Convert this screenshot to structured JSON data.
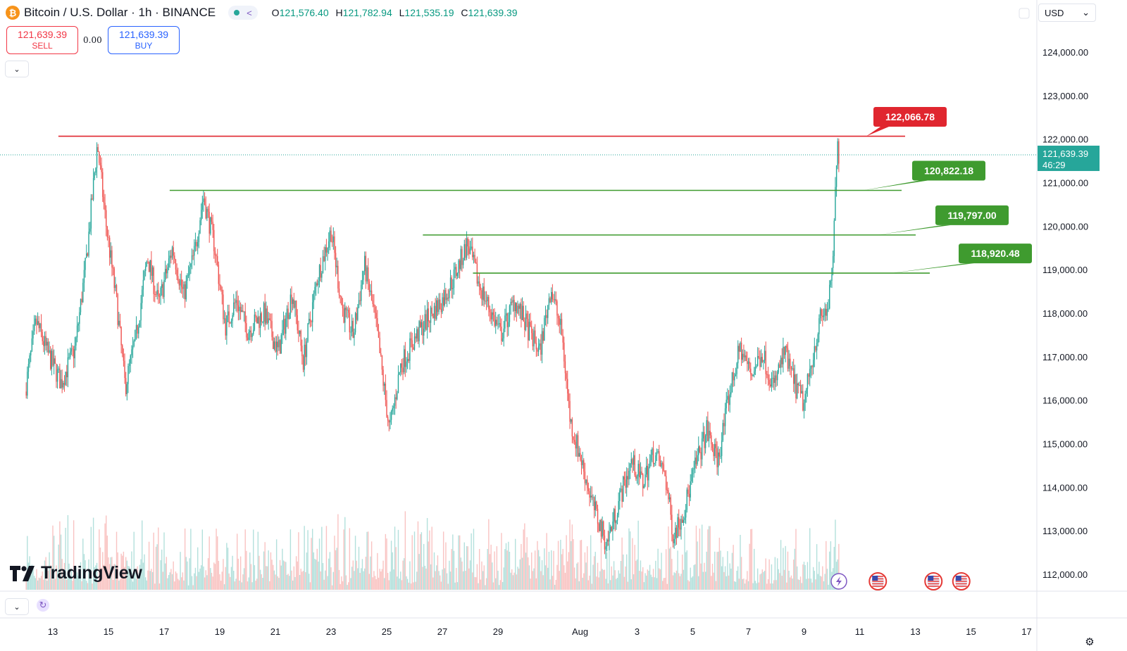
{
  "header": {
    "symbol": "Bitcoin / U.S. Dollar · 1h · BINANCE",
    "coin_glyph": "₿",
    "ohlc": {
      "o_label": "O",
      "o": "121,576.40",
      "h_label": "H",
      "h": "121,782.94",
      "l_label": "L",
      "l": "121,535.19",
      "c_label": "C",
      "c": "121,639.39"
    },
    "status_color": "#26a69a",
    "share_icon": "share-icon"
  },
  "trade": {
    "sell_price": "121,639.39",
    "sell_label": "SELL",
    "spread": "0.00",
    "buy_price": "121,639.39",
    "buy_label": "BUY"
  },
  "currency": {
    "label": "USD"
  },
  "logo": {
    "text": "TradingView"
  },
  "colors": {
    "up": "#26a69a",
    "down": "#ef5350",
    "resistance": "#e0262f",
    "support": "#3f9b2f",
    "price_tag": "#26a69a"
  },
  "chart_data": {
    "type": "candlestick",
    "symbol": "BTCUSD",
    "interval": "1h",
    "ylim": [
      111600,
      125000
    ],
    "y_ticks": [
      112000,
      113000,
      114000,
      115000,
      116000,
      117000,
      118000,
      119000,
      120000,
      121000,
      122000,
      123000,
      124000
    ],
    "y_tick_labels": [
      "112,000.00",
      "113,000.00",
      "114,000.00",
      "115,000.00",
      "116,000.00",
      "117,000.00",
      "118,000.00",
      "119,000.00",
      "120,000.00",
      "121,000.00",
      "122,000.00",
      "123,000.00",
      "124,000.00"
    ],
    "x_ticks": [
      "13",
      "15",
      "17",
      "19",
      "21",
      "23",
      "25",
      "27",
      "29",
      "Aug",
      "3",
      "5",
      "7",
      "9",
      "11",
      "13",
      "15",
      "17"
    ],
    "last_price": {
      "label": "121,639.39",
      "countdown": "46:29",
      "value": 121639.39
    },
    "price_path": [
      {
        "t": 12.0,
        "p": 116200
      },
      {
        "t": 12.4,
        "p": 117800
      },
      {
        "t": 12.8,
        "p": 117100
      },
      {
        "t": 13.3,
        "p": 116400
      },
      {
        "t": 13.8,
        "p": 117200
      },
      {
        "t": 14.2,
        "p": 119200
      },
      {
        "t": 14.6,
        "p": 121900
      },
      {
        "t": 14.9,
        "p": 120100
      },
      {
        "t": 15.3,
        "p": 118200
      },
      {
        "t": 15.6,
        "p": 116300
      },
      {
        "t": 16.0,
        "p": 117500
      },
      {
        "t": 16.4,
        "p": 119300
      },
      {
        "t": 16.8,
        "p": 118200
      },
      {
        "t": 17.3,
        "p": 119500
      },
      {
        "t": 17.7,
        "p": 118400
      },
      {
        "t": 18.1,
        "p": 119400
      },
      {
        "t": 18.4,
        "p": 120700
      },
      {
        "t": 18.8,
        "p": 119600
      },
      {
        "t": 19.2,
        "p": 117700
      },
      {
        "t": 19.6,
        "p": 118300
      },
      {
        "t": 20.0,
        "p": 117600
      },
      {
        "t": 20.6,
        "p": 118000
      },
      {
        "t": 21.1,
        "p": 117100
      },
      {
        "t": 21.6,
        "p": 118500
      },
      {
        "t": 22.0,
        "p": 116900
      },
      {
        "t": 22.5,
        "p": 118800
      },
      {
        "t": 23.0,
        "p": 119900
      },
      {
        "t": 23.4,
        "p": 118100
      },
      {
        "t": 23.8,
        "p": 117500
      },
      {
        "t": 24.2,
        "p": 119100
      },
      {
        "t": 24.6,
        "p": 117800
      },
      {
        "t": 25.1,
        "p": 115300
      },
      {
        "t": 25.5,
        "p": 116800
      },
      {
        "t": 26.0,
        "p": 117400
      },
      {
        "t": 26.5,
        "p": 117900
      },
      {
        "t": 27.0,
        "p": 118300
      },
      {
        "t": 27.4,
        "p": 118800
      },
      {
        "t": 27.9,
        "p": 119600
      },
      {
        "t": 28.3,
        "p": 118700
      },
      {
        "t": 28.7,
        "p": 118100
      },
      {
        "t": 29.1,
        "p": 117500
      },
      {
        "t": 29.6,
        "p": 118300
      },
      {
        "t": 30.1,
        "p": 117600
      },
      {
        "t": 30.5,
        "p": 117100
      },
      {
        "t": 30.9,
        "p": 118600
      },
      {
        "t": 31.3,
        "p": 117500
      },
      {
        "t": 31.6,
        "p": 115500
      },
      {
        "t": 32.0,
        "p": 114600
      },
      {
        "t": 32.4,
        "p": 113600
      },
      {
        "t": 32.9,
        "p": 112700
      },
      {
        "t": 33.4,
        "p": 113800
      },
      {
        "t": 33.8,
        "p": 114600
      },
      {
        "t": 34.2,
        "p": 114100
      },
      {
        "t": 34.6,
        "p": 114800
      },
      {
        "t": 35.0,
        "p": 114300
      },
      {
        "t": 35.3,
        "p": 112900
      },
      {
        "t": 35.7,
        "p": 113500
      },
      {
        "t": 36.1,
        "p": 114500
      },
      {
        "t": 36.5,
        "p": 115300
      },
      {
        "t": 36.9,
        "p": 114600
      },
      {
        "t": 37.3,
        "p": 116100
      },
      {
        "t": 37.7,
        "p": 117200
      },
      {
        "t": 38.1,
        "p": 116600
      },
      {
        "t": 38.5,
        "p": 117100
      },
      {
        "t": 38.9,
        "p": 116300
      },
      {
        "t": 39.3,
        "p": 117100
      },
      {
        "t": 39.7,
        "p": 116300
      },
      {
        "t": 40.0,
        "p": 115900
      },
      {
        "t": 40.3,
        "p": 117000
      },
      {
        "t": 40.6,
        "p": 117900
      },
      {
        "t": 40.85,
        "p": 118100
      },
      {
        "t": 41.0,
        "p": 118800
      },
      {
        "t": 41.1,
        "p": 120300
      },
      {
        "t": 41.2,
        "p": 121850
      },
      {
        "t": 41.25,
        "p": 121639
      }
    ],
    "levels": [
      {
        "value": 122066.78,
        "label": "122,066.78",
        "kind": "resistance",
        "x_start": 13.2
      },
      {
        "value": 120822.18,
        "label": "120,822.18",
        "kind": "support",
        "x_start": 17.2
      },
      {
        "value": 119797.0,
        "label": "119,797.00",
        "kind": "support",
        "x_start": 26.3
      },
      {
        "value": 118920.48,
        "label": "118,920.48",
        "kind": "support",
        "x_start": 28.1
      }
    ],
    "events": [
      {
        "t": 41.1,
        "icon": "lightning-icon"
      },
      {
        "t": 42.5,
        "icon": "us-flag-icon"
      },
      {
        "t": 44.5,
        "icon": "us-flag-icon"
      },
      {
        "t": 45.5,
        "icon": "us-flag-icon"
      }
    ]
  }
}
